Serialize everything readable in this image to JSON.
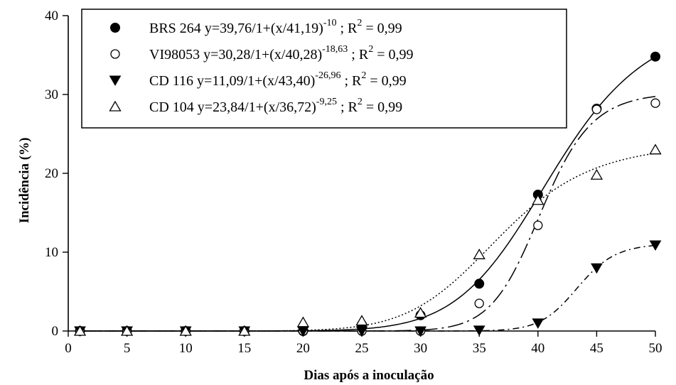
{
  "chart_data": {
    "type": "scatter",
    "title": "",
    "xlabel": "Dias após a inoculação",
    "ylabel": "Incidência (%)",
    "xlim": [
      0,
      50
    ],
    "ylim": [
      0,
      40
    ],
    "xticks": [
      "0",
      "5",
      "10",
      "15",
      "20",
      "25",
      "30",
      "35",
      "40",
      "45",
      "50"
    ],
    "yticks": [
      "0",
      "10",
      "20",
      "30",
      "40"
    ],
    "x": [
      1,
      5,
      10,
      15,
      20,
      25,
      30,
      35,
      40,
      45,
      50
    ],
    "legend_position": "top-left",
    "series": [
      {
        "name": "BRS 264",
        "equation": "y=39,76/1+(x/41,19)",
        "exponent": "-10",
        "r2_label": "R",
        "r2_sup": "2",
        "r2_value": " = 0,99",
        "values": [
          0,
          0,
          0,
          0,
          0,
          0.8,
          2.0,
          6.0,
          17.3,
          28.2,
          34.8
        ],
        "fit": {
          "a": 39.76,
          "x0": 41.19,
          "b": -10
        },
        "marker": "filled-circle",
        "line_style": "solid",
        "color": "#000000"
      },
      {
        "name": "VI98053",
        "equation": "y=30,28/1+(x/40,28)",
        "exponent": "-18,63",
        "r2_label": "R",
        "r2_sup": "2",
        "r2_value": " = 0,99",
        "values": [
          0,
          0,
          0,
          0,
          0,
          0,
          0,
          3.5,
          13.4,
          28.1,
          28.9
        ],
        "fit": {
          "a": 30.28,
          "x0": 40.28,
          "b": -18.63
        },
        "marker": "open-circle",
        "line_style": "long-dash",
        "color": "#000000"
      },
      {
        "name": "CD 116",
        "equation": "y=11,09/1+(x/43,40)",
        "exponent": "-26,96",
        "r2_label": "R",
        "r2_sup": "2",
        "r2_value": " = 0,99",
        "values": [
          0,
          0,
          0,
          0,
          0,
          0,
          0,
          0.1,
          1.0,
          8.0,
          10.9
        ],
        "fit": {
          "a": 11.09,
          "x0": 43.4,
          "b": -26.96
        },
        "marker": "filled-triangle-down",
        "line_style": "dash-dot",
        "color": "#000000"
      },
      {
        "name": "CD 104",
        "equation": "y=23,84/1+(x/36,72)",
        "exponent": "-9,25",
        "r2_label": "R",
        "r2_sup": "2",
        "r2_value": " = 0,99",
        "values": [
          0,
          0,
          0,
          0,
          1.1,
          1.3,
          2.3,
          9.7,
          16.6,
          19.8,
          23.0
        ],
        "fit": {
          "a": 23.84,
          "x0": 36.72,
          "b": -9.25
        },
        "marker": "open-triangle-up",
        "line_style": "dotted",
        "color": "#000000"
      }
    ]
  }
}
